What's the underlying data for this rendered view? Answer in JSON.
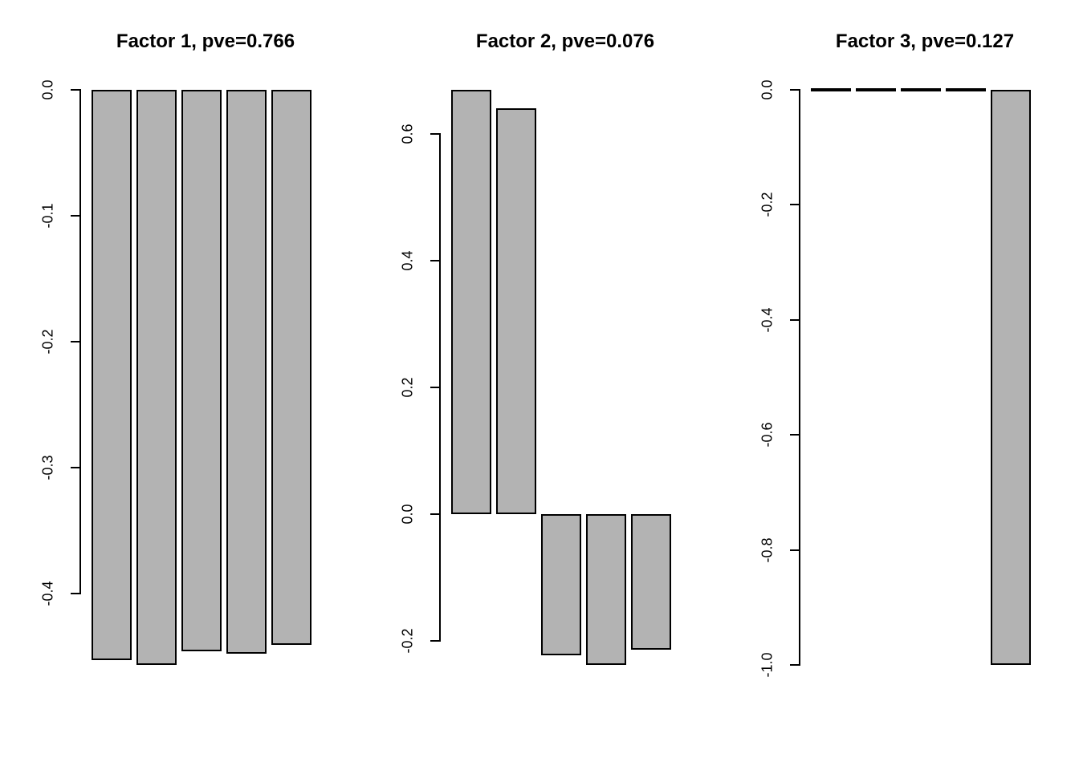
{
  "figure": {
    "background_color": "#ffffff",
    "text_color": "#000000",
    "axis_color": "#000000"
  },
  "chart_data": [
    {
      "type": "bar",
      "title": "Factor 1, pve=0.766",
      "pve": 0.766,
      "values": [
        -0.453,
        -0.457,
        -0.446,
        -0.448,
        -0.441
      ],
      "yticks": [
        0.0,
        -0.1,
        -0.2,
        -0.3,
        -0.4
      ],
      "ytick_labels": [
        "0.0",
        "-0.1",
        "-0.2",
        "-0.3",
        "-0.4"
      ],
      "ylim": [
        -0.4753,
        0.0183
      ],
      "xlabel": "",
      "ylabel": "",
      "grid": false,
      "legend": null,
      "bar_color": "#b3b3b3",
      "bar_border_color": "#000000"
    },
    {
      "type": "bar",
      "title": "Factor 2, pve=0.076",
      "pve": 0.076,
      "values": [
        0.67,
        0.64,
        -0.223,
        -0.238,
        -0.213
      ],
      "yticks": [
        0.6,
        0.4,
        0.2,
        0.0,
        -0.2
      ],
      "ytick_labels": [
        "0.6",
        "0.4",
        "0.2",
        "0.0",
        "-0.2"
      ],
      "ylim": [
        -0.2743,
        0.7063
      ],
      "xlabel": "",
      "ylabel": "",
      "grid": false,
      "legend": null,
      "bar_color": "#b3b3b3",
      "bar_border_color": "#000000"
    },
    {
      "type": "bar",
      "title": "Factor 3, pve=0.127",
      "pve": 0.127,
      "values": [
        0.0,
        0.0,
        0.0,
        0.0,
        -1.0
      ],
      "yticks": [
        0.0,
        -0.2,
        -0.4,
        -0.6,
        -0.8,
        -1.0
      ],
      "ytick_labels": [
        "0.0",
        "-0.2",
        "-0.4",
        "-0.6",
        "-0.8",
        "-1.0"
      ],
      "ylim": [
        -1.04,
        0.04
      ],
      "xlabel": "",
      "ylabel": "",
      "grid": false,
      "legend": null,
      "bar_color": "#b3b3b3",
      "bar_border_color": "#000000"
    }
  ]
}
